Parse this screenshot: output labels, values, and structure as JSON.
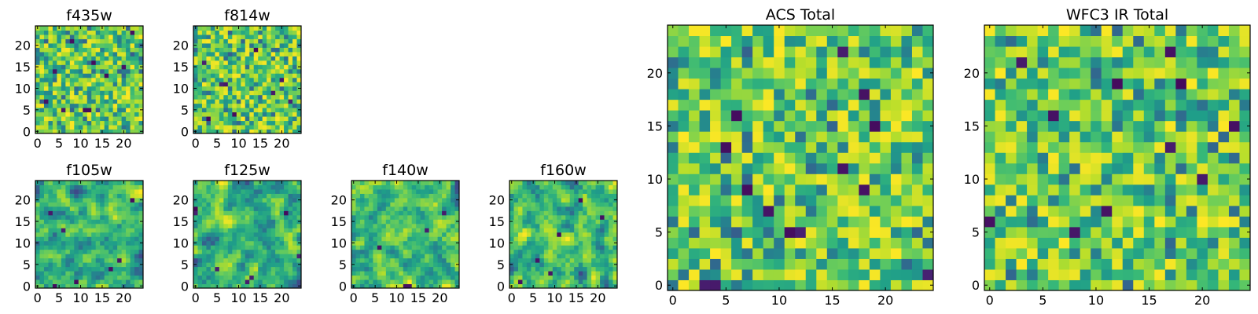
{
  "chart_data": [
    {
      "type": "heatmap",
      "title": "f435w",
      "grid_size": [
        25,
        25
      ],
      "xlim": [
        0,
        24
      ],
      "ylim": [
        0,
        24
      ],
      "x_tick_labels": [
        "0",
        "5",
        "10",
        "15",
        "20"
      ],
      "y_tick_labels": [
        "0",
        "5",
        "10",
        "15",
        "20"
      ],
      "colormap": "viridis",
      "value_range": [
        0,
        1
      ],
      "seed": 11,
      "smooth": 0,
      "dark_cells": [
        [
          6,
          5
        ],
        [
          11,
          5
        ],
        [
          12,
          5
        ],
        [
          4,
          14
        ],
        [
          16,
          13
        ],
        [
          2,
          7
        ],
        [
          20,
          15
        ],
        [
          22,
          23
        ],
        [
          13,
          16
        ],
        [
          8,
          21
        ]
      ]
    },
    {
      "type": "heatmap",
      "title": "f814w",
      "grid_size": [
        25,
        25
      ],
      "xlim": [
        0,
        24
      ],
      "ylim": [
        0,
        24
      ],
      "x_tick_labels": [
        "0",
        "5",
        "10",
        "15",
        "20"
      ],
      "y_tick_labels": [
        "0",
        "5",
        "10",
        "15",
        "20"
      ],
      "colormap": "viridis",
      "value_range": [
        0,
        1
      ],
      "seed": 23,
      "smooth": 0,
      "dark_cells": [
        [
          6,
          11
        ],
        [
          7,
          11
        ],
        [
          18,
          9
        ],
        [
          20,
          12
        ],
        [
          9,
          4
        ],
        [
          14,
          19
        ],
        [
          3,
          3
        ],
        [
          2,
          16
        ],
        [
          22,
          7
        ]
      ]
    },
    {
      "type": "heatmap",
      "title": "f105w",
      "grid_size": [
        25,
        25
      ],
      "xlim": [
        0,
        24
      ],
      "ylim": [
        0,
        24
      ],
      "x_tick_labels": [
        "0",
        "5",
        "10",
        "15",
        "20"
      ],
      "y_tick_labels": [
        "0",
        "5",
        "10",
        "15",
        "20"
      ],
      "colormap": "viridis",
      "value_range": [
        0,
        1
      ],
      "seed": 37,
      "smooth": 1,
      "dark_cells": [
        [
          4,
          0
        ],
        [
          9,
          1
        ],
        [
          19,
          6
        ],
        [
          22,
          20
        ],
        [
          6,
          13
        ],
        [
          17,
          4
        ],
        [
          3,
          17
        ]
      ]
    },
    {
      "type": "heatmap",
      "title": "f125w",
      "grid_size": [
        25,
        25
      ],
      "xlim": [
        0,
        24
      ],
      "ylim": [
        0,
        24
      ],
      "x_tick_labels": [
        "0",
        "5",
        "10",
        "15",
        "20"
      ],
      "y_tick_labels": [
        "0",
        "5",
        "10",
        "15",
        "20"
      ],
      "colormap": "viridis",
      "value_range": [
        0,
        1
      ],
      "seed": 41,
      "smooth": 1,
      "dark_cells": [
        [
          0,
          18
        ],
        [
          0,
          17
        ],
        [
          24,
          7
        ],
        [
          21,
          17
        ],
        [
          13,
          2
        ],
        [
          12,
          1
        ],
        [
          5,
          4
        ]
      ]
    },
    {
      "type": "heatmap",
      "title": "f140w",
      "grid_size": [
        25,
        25
      ],
      "xlim": [
        0,
        24
      ],
      "ylim": [
        0,
        24
      ],
      "x_tick_labels": [
        "0",
        "5",
        "10",
        "15",
        "20"
      ],
      "y_tick_labels": [
        "0",
        "5",
        "10",
        "15",
        "20"
      ],
      "colormap": "viridis",
      "value_range": [
        0,
        1
      ],
      "seed": 53,
      "smooth": 1,
      "dark_cells": [
        [
          12,
          0
        ],
        [
          13,
          0
        ],
        [
          21,
          17
        ],
        [
          6,
          9
        ],
        [
          17,
          13
        ]
      ]
    },
    {
      "type": "heatmap",
      "title": "f160w",
      "grid_size": [
        25,
        25
      ],
      "xlim": [
        0,
        24
      ],
      "ylim": [
        0,
        24
      ],
      "x_tick_labels": [
        "0",
        "5",
        "10",
        "15",
        "20"
      ],
      "y_tick_labels": [
        "0",
        "5",
        "10",
        "15",
        "20"
      ],
      "colormap": "viridis",
      "value_range": [
        0,
        1
      ],
      "seed": 67,
      "smooth": 1,
      "dark_cells": [
        [
          6,
          6
        ],
        [
          11,
          12
        ],
        [
          21,
          16
        ],
        [
          2,
          1
        ],
        [
          16,
          20
        ],
        [
          9,
          3
        ]
      ]
    },
    {
      "type": "heatmap",
      "title": "ACS Total",
      "grid_size": [
        25,
        25
      ],
      "xlim": [
        0,
        24
      ],
      "ylim": [
        0,
        24
      ],
      "x_tick_labels": [
        "0",
        "5",
        "10",
        "15",
        "20"
      ],
      "y_tick_labels": [
        "0",
        "5",
        "10",
        "15",
        "20"
      ],
      "colormap": "viridis",
      "value_range": [
        0,
        1
      ],
      "seed": 79,
      "smooth": 0,
      "dark_cells": [
        [
          11,
          5
        ],
        [
          12,
          5
        ],
        [
          16,
          22
        ],
        [
          18,
          18
        ],
        [
          5,
          13
        ],
        [
          16,
          11
        ],
        [
          18,
          9
        ],
        [
          7,
          9
        ],
        [
          24,
          1
        ],
        [
          3,
          0
        ],
        [
          4,
          0
        ],
        [
          9,
          7
        ],
        [
          19,
          15
        ],
        [
          6,
          16
        ]
      ]
    },
    {
      "type": "heatmap",
      "title": "WFC3 IR Total",
      "grid_size": [
        25,
        25
      ],
      "xlim": [
        0,
        24
      ],
      "ylim": [
        0,
        24
      ],
      "x_tick_labels": [
        "0",
        "5",
        "10",
        "15",
        "20"
      ],
      "y_tick_labels": [
        "0",
        "5",
        "10",
        "15",
        "20"
      ],
      "colormap": "viridis",
      "value_range": [
        0,
        1
      ],
      "seed": 97,
      "smooth": 0,
      "dark_cells": [
        [
          17,
          22
        ],
        [
          12,
          19
        ],
        [
          18,
          19
        ],
        [
          23,
          15
        ],
        [
          17,
          13
        ],
        [
          0,
          6
        ],
        [
          11,
          7
        ],
        [
          8,
          5
        ],
        [
          3,
          21
        ],
        [
          6,
          16
        ],
        [
          20,
          10
        ]
      ]
    }
  ]
}
